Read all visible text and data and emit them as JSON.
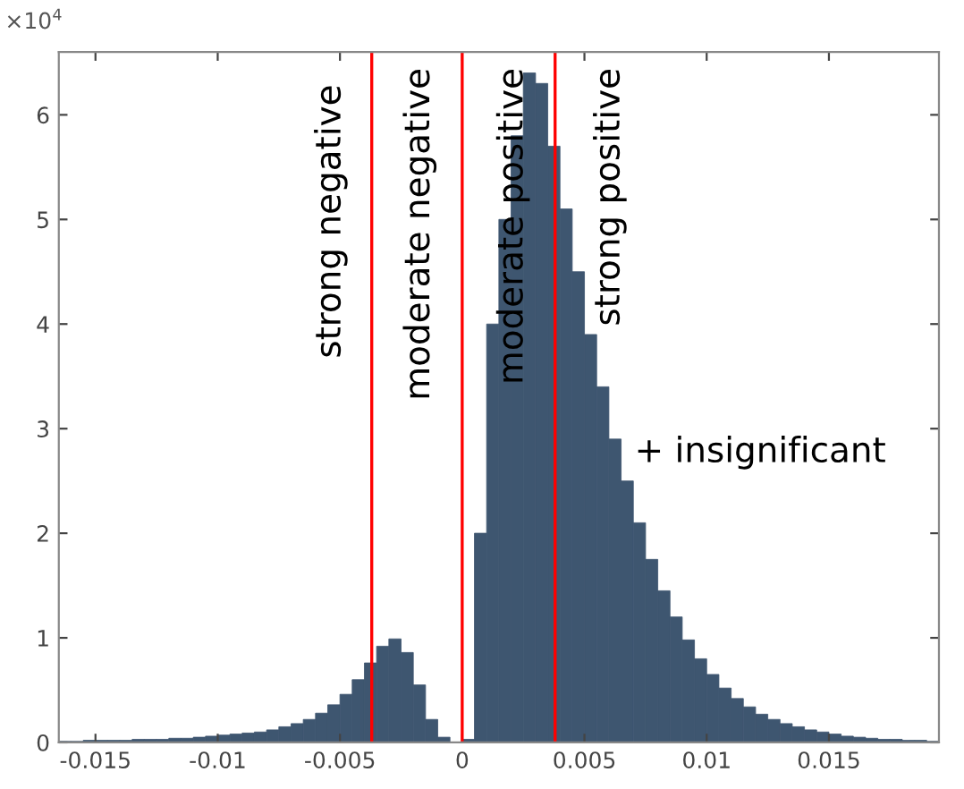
{
  "chart_data": {
    "type": "histogram",
    "bins": [
      -0.0165,
      -0.016,
      -0.0155,
      -0.015,
      -0.0145,
      -0.014,
      -0.0135,
      -0.013,
      -0.0125,
      -0.012,
      -0.0115,
      -0.011,
      -0.0105,
      -0.01,
      -0.0095,
      -0.009,
      -0.0085,
      -0.008,
      -0.0075,
      -0.007,
      -0.0065,
      -0.006,
      -0.0055,
      -0.005,
      -0.0045,
      -0.004,
      -0.0035,
      -0.003,
      -0.0025,
      -0.002,
      -0.0015,
      -0.001,
      -0.0005,
      0,
      0.0005,
      0.001,
      0.0015,
      0.002,
      0.0025,
      0.003,
      0.0035,
      0.004,
      0.0045,
      0.005,
      0.0055,
      0.006,
      0.0065,
      0.007,
      0.0075,
      0.008,
      0.0085,
      0.009,
      0.0095,
      0.01,
      0.0105,
      0.011,
      0.0115,
      0.012,
      0.0125,
      0.013,
      0.0135,
      0.014,
      0.0145,
      0.015,
      0.0155,
      0.016,
      0.0165,
      0.017,
      0.0175,
      0.018,
      0.0185,
      0.019,
      0.0195
    ],
    "values": [
      0.01,
      0.01,
      0.02,
      0.02,
      0.02,
      0.02,
      0.03,
      0.03,
      0.03,
      0.04,
      0.04,
      0.05,
      0.06,
      0.07,
      0.08,
      0.09,
      0.1,
      0.12,
      0.15,
      0.18,
      0.22,
      0.28,
      0.36,
      0.46,
      0.6,
      0.76,
      0.92,
      0.99,
      0.86,
      0.55,
      0.22,
      0.05,
      0,
      0.03,
      2,
      4,
      5,
      5.8,
      6.4,
      6.3,
      5.7,
      5.1,
      4.5,
      3.9,
      3.4,
      2.9,
      2.5,
      2.1,
      1.75,
      1.45,
      1.2,
      0.98,
      0.8,
      0.65,
      0.52,
      0.42,
      0.34,
      0.27,
      0.22,
      0.18,
      0.15,
      0.12,
      0.1,
      0.08,
      0.06,
      0.05,
      0.04,
      0.03,
      0.03,
      0.02,
      0.02,
      0.01
    ],
    "color": "#3e5670",
    "xlim": [
      -0.0165,
      0.0195
    ],
    "xticks": [
      -0.015,
      -0.01,
      -0.005,
      0,
      0.005,
      0.01,
      0.015
    ],
    "ylim": [
      0,
      6.6
    ],
    "yticks": [
      0,
      1,
      2,
      3,
      4,
      5,
      6
    ],
    "ref_lines": [
      {
        "axis": "x",
        "value": -0.0037,
        "color": "#ff0000"
      },
      {
        "axis": "x",
        "value": 0,
        "color": "#ff0000"
      },
      {
        "axis": "x",
        "value": 0.0038,
        "color": "#ff0000"
      }
    ],
    "annotations": [
      "×10$^{4}$",
      "strong negative",
      "moderate negative",
      "moderate positive",
      "strong positive",
      "+ insignificant"
    ],
    "grid": false
  }
}
